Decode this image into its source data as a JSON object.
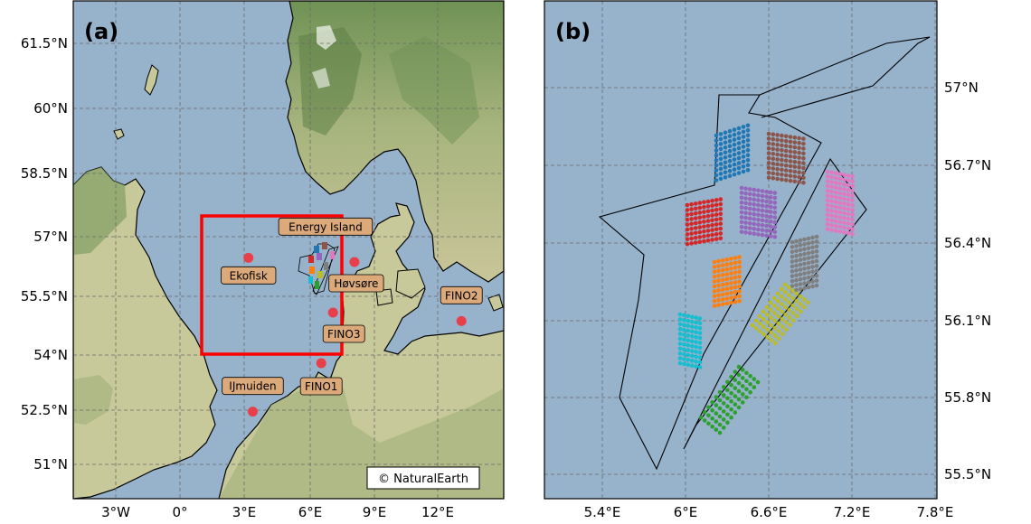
{
  "panels": {
    "a": {
      "label": "(a)",
      "attribution": "© NaturalEarth",
      "lon_ticks": [
        "3°W",
        "0°",
        "3°E",
        "6°E",
        "9°E",
        "12°E"
      ],
      "lat_ticks": [
        "61.5°N",
        "60°N",
        "58.5°N",
        "57°N",
        "55.5°N",
        "54°N",
        "52.5°N",
        "51°N"
      ],
      "sites": [
        {
          "name": "Energy Island",
          "lon": 6.8,
          "lat": 56.8
        },
        {
          "name": "Ekofisk",
          "lon": 3.2,
          "lat": 56.5
        },
        {
          "name": "Høvsøre",
          "lon": 8.15,
          "lat": 56.4
        },
        {
          "name": "FINO3",
          "lon": 7.15,
          "lat": 55.2
        },
        {
          "name": "FINO2",
          "lon": 13.15,
          "lat": 55.0
        },
        {
          "name": "FINO1",
          "lon": 6.6,
          "lat": 54.0
        },
        {
          "name": "IJmuiden",
          "lon": 3.4,
          "lat": 52.85
        }
      ],
      "domain_box": {
        "lon_min": 1.0,
        "lon_max": 7.5,
        "lat_min": 54.0,
        "lat_max": 57.5
      }
    },
    "b": {
      "label": "(b)",
      "lon_ticks": [
        "5.4°E",
        "6°E",
        "6.6°E",
        "7.2°E",
        "7.8°E"
      ],
      "lat_ticks": [
        "57°N",
        "56.7°N",
        "56.4°N",
        "56.1°N",
        "55.8°N",
        "55.5°N"
      ],
      "turbine_colors": [
        "#1f77b4",
        "#8c564b",
        "#d62728",
        "#9467bd",
        "#e377c2",
        "#ff7f0e",
        "#7f7f7f",
        "#17becf",
        "#bcbd22",
        "#2ca02c"
      ]
    }
  },
  "colors": {
    "sea": "#97b2cb",
    "land": "#c7c99b",
    "forest": "#8aa36a",
    "box": "#ff0000",
    "site_dot": "#e8404a",
    "label_bg": "#dba97a"
  }
}
